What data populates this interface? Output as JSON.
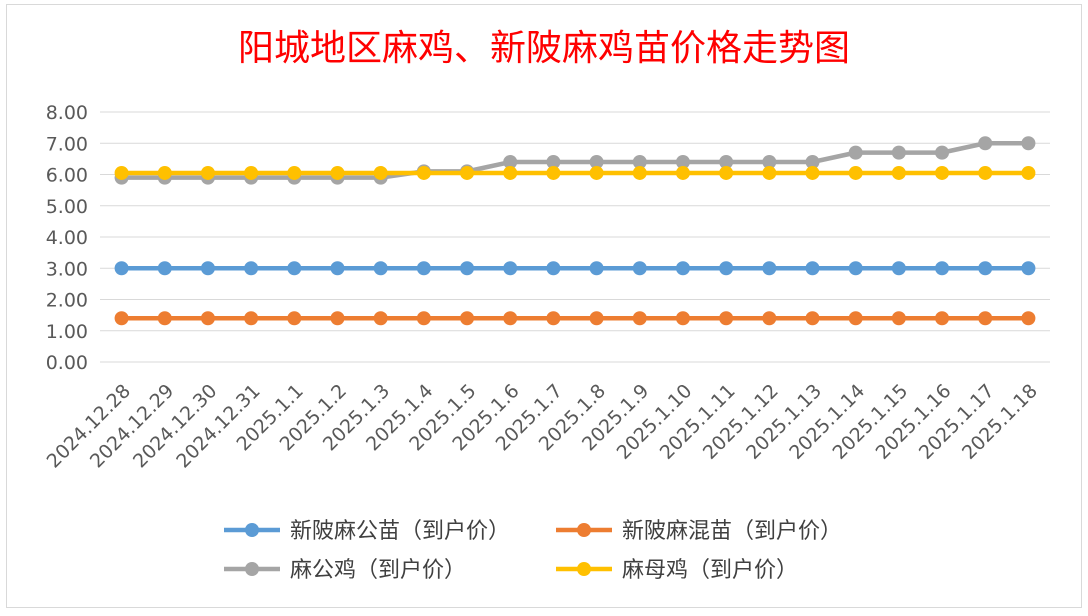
{
  "chart_data": {
    "type": "line",
    "title": "阳城地区麻鸡、新陂麻鸡苗价格走势图",
    "xlabel": "",
    "ylabel": "",
    "ylim": [
      0,
      8
    ],
    "yticks": [
      "0.00",
      "1.00",
      "2.00",
      "3.00",
      "4.00",
      "5.00",
      "6.00",
      "7.00",
      "8.00"
    ],
    "grid": true,
    "legend_position": "bottom",
    "categories": [
      "2024.12.28",
      "2024.12.29",
      "2024.12.30",
      "2024.12.31",
      "2025.1.1",
      "2025.1.2",
      "2025.1.3",
      "2025.1.4",
      "2025.1.5",
      "2025.1.6",
      "2025.1.7",
      "2025.1.8",
      "2025.1.9",
      "2025.1.10",
      "2025.1.11",
      "2025.1.12",
      "2025.1.13",
      "2025.1.14",
      "2025.1.15",
      "2025.1.16",
      "2025.1.17",
      "2025.1.18"
    ],
    "series": [
      {
        "name": "新陂麻公苗（到户价）",
        "color": "#5b9bd5",
        "values": [
          3.0,
          3.0,
          3.0,
          3.0,
          3.0,
          3.0,
          3.0,
          3.0,
          3.0,
          3.0,
          3.0,
          3.0,
          3.0,
          3.0,
          3.0,
          3.0,
          3.0,
          3.0,
          3.0,
          3.0,
          3.0,
          3.0
        ]
      },
      {
        "name": "新陂麻混苗（到户价）",
        "color": "#ed7d31",
        "values": [
          1.4,
          1.4,
          1.4,
          1.4,
          1.4,
          1.4,
          1.4,
          1.4,
          1.4,
          1.4,
          1.4,
          1.4,
          1.4,
          1.4,
          1.4,
          1.4,
          1.4,
          1.4,
          1.4,
          1.4,
          1.4,
          1.4
        ]
      },
      {
        "name": "麻公鸡（到户价）",
        "color": "#a5a5a5",
        "values": [
          5.9,
          5.9,
          5.9,
          5.9,
          5.9,
          5.9,
          5.9,
          6.1,
          6.1,
          6.4,
          6.4,
          6.4,
          6.4,
          6.4,
          6.4,
          6.4,
          6.4,
          6.7,
          6.7,
          6.7,
          7.0,
          7.0
        ]
      },
      {
        "name": "麻母鸡（到户价）",
        "color": "#ffc000",
        "values": [
          6.05,
          6.05,
          6.05,
          6.05,
          6.05,
          6.05,
          6.05,
          6.05,
          6.05,
          6.05,
          6.05,
          6.05,
          6.05,
          6.05,
          6.05,
          6.05,
          6.05,
          6.05,
          6.05,
          6.05,
          6.05,
          6.05
        ]
      }
    ]
  }
}
